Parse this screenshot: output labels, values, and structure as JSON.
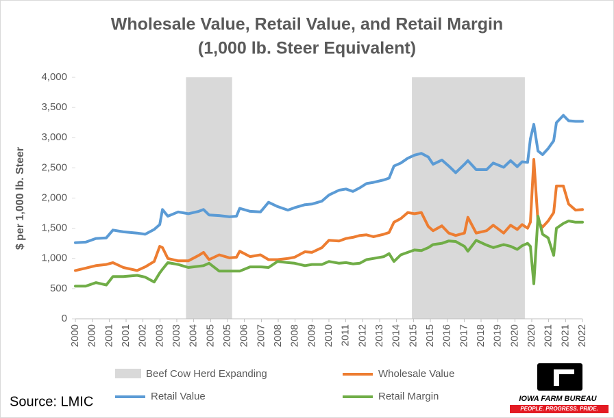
{
  "chart_data": {
    "type": "line",
    "title": "Wholesale Value, Retail Value, and Retail Margin",
    "subtitle": "(1,000 lb. Steer Equivalent)",
    "y_label": "$ per 1,000 lb. Steer",
    "source": "Source: LMIC",
    "logo_text": "IOWA FARM BUREAU",
    "logo_tagline": "PEOPLE. PROGRESS. PRIDE.",
    "shaded_label": "Beef Cow Herd Expanding",
    "shade_color": "#d9d9d9",
    "shaded": [
      [
        2004.8,
        2006.8
      ],
      [
        2014.6,
        2019.5
      ]
    ],
    "xlim": [
      2000,
      2022
    ],
    "ylim": [
      0,
      4000
    ],
    "yticks": [
      0,
      500,
      {
        "value": 1000,
        "label": "1,000"
      },
      {
        "value": 1500,
        "label": "1,500"
      },
      {
        "value": 2000,
        "label": "2,000"
      },
      {
        "value": 2500,
        "label": "2,500"
      },
      {
        "value": 3000,
        "label": "3,000"
      },
      {
        "value": 3500,
        "label": "3,500"
      },
      {
        "value": 4000,
        "label": "4,000"
      }
    ],
    "xticks": [
      2000,
      {
        "value": 2000.73,
        "label": "2000"
      },
      {
        "value": 2001.47,
        "label": "2001"
      },
      {
        "value": 2002.2,
        "label": "2001"
      },
      {
        "value": 2002.93,
        "label": "2002"
      },
      {
        "value": 2003.67,
        "label": "2003"
      },
      {
        "value": 2004.4,
        "label": "2003"
      },
      {
        "value": 2005.13,
        "label": "2004"
      },
      {
        "value": 2005.87,
        "label": "2005"
      },
      {
        "value": 2006.6,
        "label": "2005"
      },
      {
        "value": 2007.33,
        "label": "2006"
      },
      {
        "value": 2008.07,
        "label": "2007"
      },
      {
        "value": 2008.8,
        "label": "2008"
      },
      {
        "value": 2009.53,
        "label": "2008"
      },
      {
        "value": 2010.27,
        "label": "2009"
      },
      {
        "value": 2011.0,
        "label": "2010"
      },
      {
        "value": 2011.73,
        "label": "2011"
      },
      {
        "value": 2012.47,
        "label": "2012"
      },
      {
        "value": 2013.2,
        "label": "2013"
      },
      {
        "value": 2013.93,
        "label": "2014"
      },
      {
        "value": 2014.67,
        "label": "2015"
      },
      {
        "value": 2015.4,
        "label": "2015"
      },
      {
        "value": 2016.13,
        "label": "2016"
      },
      {
        "value": 2016.87,
        "label": "2017"
      },
      {
        "value": 2017.6,
        "label": "2018"
      },
      {
        "value": 2018.33,
        "label": "2019"
      },
      {
        "value": 2019.07,
        "label": "2020"
      },
      {
        "value": 2019.8,
        "label": "2020"
      },
      {
        "value": 2020.53,
        "label": "2021"
      },
      {
        "value": 2021.27,
        "label": "2021"
      },
      2022
    ],
    "x": [
      2000.0,
      2000.45,
      2000.89,
      2001.34,
      2001.63,
      2002.08,
      2002.68,
      2003.03,
      2003.42,
      2003.66,
      2003.78,
      2004.01,
      2004.46,
      2004.9,
      2005.35,
      2005.56,
      2005.8,
      2006.24,
      2006.69,
      2006.99,
      2007.13,
      2007.58,
      2008.03,
      2008.38,
      2008.77,
      2009.22,
      2009.51,
      2009.96,
      2010.26,
      2010.7,
      2011.0,
      2011.44,
      2011.74,
      2012.04,
      2012.34,
      2012.63,
      2012.93,
      2013.38,
      2013.61,
      2013.82,
      2014.12,
      2014.42,
      2014.71,
      2015.01,
      2015.31,
      2015.52,
      2015.9,
      2016.2,
      2016.5,
      2016.88,
      2017.03,
      2017.39,
      2017.84,
      2018.13,
      2018.58,
      2018.88,
      2019.17,
      2019.38,
      2019.62,
      2019.74,
      2019.89,
      2020.07,
      2020.27,
      2020.51,
      2020.75,
      2020.87,
      2021.17,
      2021.4,
      2021.7,
      2022.0
    ],
    "series": [
      {
        "name": "Wholesale Value",
        "color": "#ed7d31",
        "values": [
          800,
          840,
          880,
          900,
          930,
          850,
          800,
          860,
          950,
          1200,
          1180,
          1000,
          960,
          960,
          1050,
          1100,
          980,
          1060,
          1010,
          1020,
          1120,
          1030,
          1060,
          980,
          980,
          1000,
          1020,
          1110,
          1100,
          1180,
          1300,
          1290,
          1330,
          1350,
          1380,
          1390,
          1360,
          1400,
          1430,
          1600,
          1660,
          1760,
          1740,
          1760,
          1530,
          1460,
          1540,
          1420,
          1380,
          1420,
          1680,
          1420,
          1460,
          1550,
          1420,
          1550,
          1480,
          1560,
          1500,
          1600,
          2640,
          1600,
          1520,
          1620,
          1760,
          2200,
          2200,
          1900,
          1800,
          1810
        ]
      },
      {
        "name": "Retail Value",
        "color": "#5b9bd5",
        "values": [
          1260,
          1270,
          1330,
          1340,
          1470,
          1440,
          1420,
          1400,
          1480,
          1560,
          1810,
          1700,
          1770,
          1740,
          1780,
          1810,
          1720,
          1710,
          1690,
          1700,
          1830,
          1780,
          1770,
          1930,
          1860,
          1800,
          1840,
          1890,
          1900,
          1950,
          2050,
          2130,
          2150,
          2110,
          2170,
          2240,
          2260,
          2300,
          2330,
          2530,
          2580,
          2660,
          2710,
          2740,
          2680,
          2560,
          2630,
          2530,
          2420,
          2560,
          2620,
          2470,
          2470,
          2580,
          2510,
          2620,
          2520,
          2600,
          2590,
          2980,
          3220,
          2780,
          2720,
          2820,
          2950,
          3250,
          3370,
          3280,
          3270,
          3270
        ]
      },
      {
        "name": "Retail Margin",
        "color": "#70ad47",
        "values": [
          540,
          540,
          600,
          560,
          700,
          700,
          720,
          690,
          610,
          760,
          820,
          930,
          900,
          850,
          870,
          880,
          920,
          790,
          790,
          790,
          790,
          860,
          860,
          850,
          950,
          930,
          920,
          880,
          900,
          900,
          950,
          920,
          930,
          910,
          920,
          980,
          1000,
          1030,
          1080,
          950,
          1060,
          1100,
          1140,
          1130,
          1180,
          1230,
          1250,
          1290,
          1280,
          1200,
          1120,
          1300,
          1220,
          1180,
          1230,
          1200,
          1150,
          1210,
          1250,
          1200,
          580,
          1700,
          1400,
          1340,
          1050,
          1500,
          1580,
          1620,
          1600,
          1600
        ]
      }
    ]
  }
}
